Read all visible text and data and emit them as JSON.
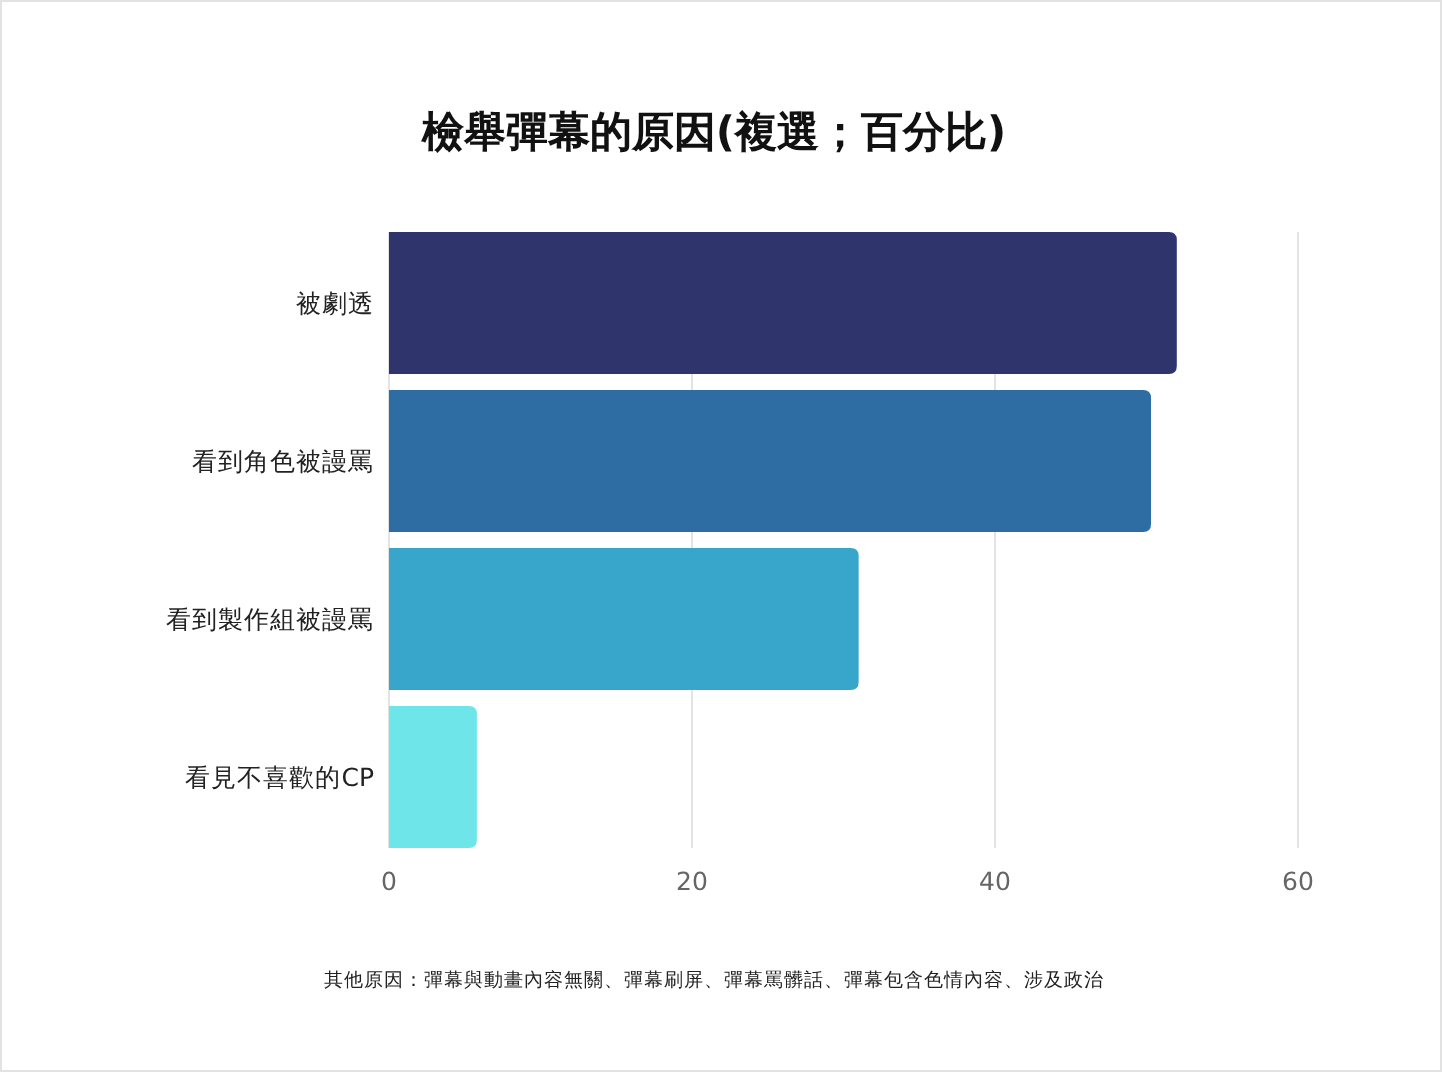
{
  "chart_data": {
    "type": "bar",
    "orientation": "horizontal",
    "title": "檢舉彈幕的原因(複選；百分比)",
    "categories": [
      "被劇透",
      "看到角色被謾罵",
      "看到製作組被謾罵",
      "看見不喜歡的CP"
    ],
    "values": [
      52,
      50.3,
      31,
      5.8
    ],
    "colors": [
      "#30346c",
      "#2d6da3",
      "#38a6cb",
      "#6ee5e8"
    ],
    "xlim": [
      0,
      60
    ],
    "xticks": [
      0,
      20,
      40,
      60
    ],
    "grid": "x",
    "annotations": [
      "其他原因：彈幕與動畫內容無關、彈幕刷屏、彈幕罵髒話、彈幕包含色情內容、涉及政治"
    ]
  }
}
